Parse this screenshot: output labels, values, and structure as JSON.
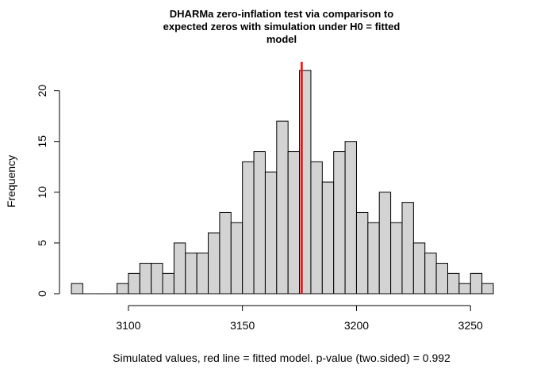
{
  "chart_data": {
    "type": "histogram",
    "title_lines": [
      "DHARMa zero-inflation test via comparison to",
      "expected zeros with simulation under H0 = fitted",
      "model"
    ],
    "xlabel": "Simulated values, red line = fitted model. p-value (two.sided) = 0.992",
    "ylabel": "Frequency",
    "bin_width": 5,
    "bins_start": [
      3075,
      3080,
      3085,
      3090,
      3095,
      3100,
      3105,
      3110,
      3115,
      3120,
      3125,
      3130,
      3135,
      3140,
      3145,
      3150,
      3155,
      3160,
      3165,
      3170,
      3175,
      3180,
      3185,
      3190,
      3195,
      3200,
      3205,
      3210,
      3215,
      3220,
      3225,
      3230,
      3235,
      3240,
      3245,
      3250,
      3255
    ],
    "counts": [
      1,
      0,
      0,
      0,
      1,
      2,
      3,
      3,
      2,
      5,
      4,
      4,
      6,
      8,
      7,
      13,
      14,
      12,
      17,
      14,
      22,
      13,
      11,
      14,
      15,
      8,
      7,
      10,
      7,
      9,
      5,
      4,
      3,
      2,
      1,
      2,
      1
    ],
    "observed_value": 3176,
    "observed_color": "#ff0000",
    "bar_color": "#d3d3d3",
    "xlim": [
      3075,
      3260
    ],
    "ylim": [
      0,
      22
    ],
    "x_ticks": [
      3100,
      3150,
      3200,
      3250
    ],
    "x_tick_labels": [
      "3100",
      "3150",
      "3200",
      "3250"
    ],
    "y_ticks": [
      0,
      5,
      10,
      15,
      20
    ],
    "y_tick_labels": [
      "0",
      "5",
      "10",
      "15",
      "20"
    ]
  }
}
